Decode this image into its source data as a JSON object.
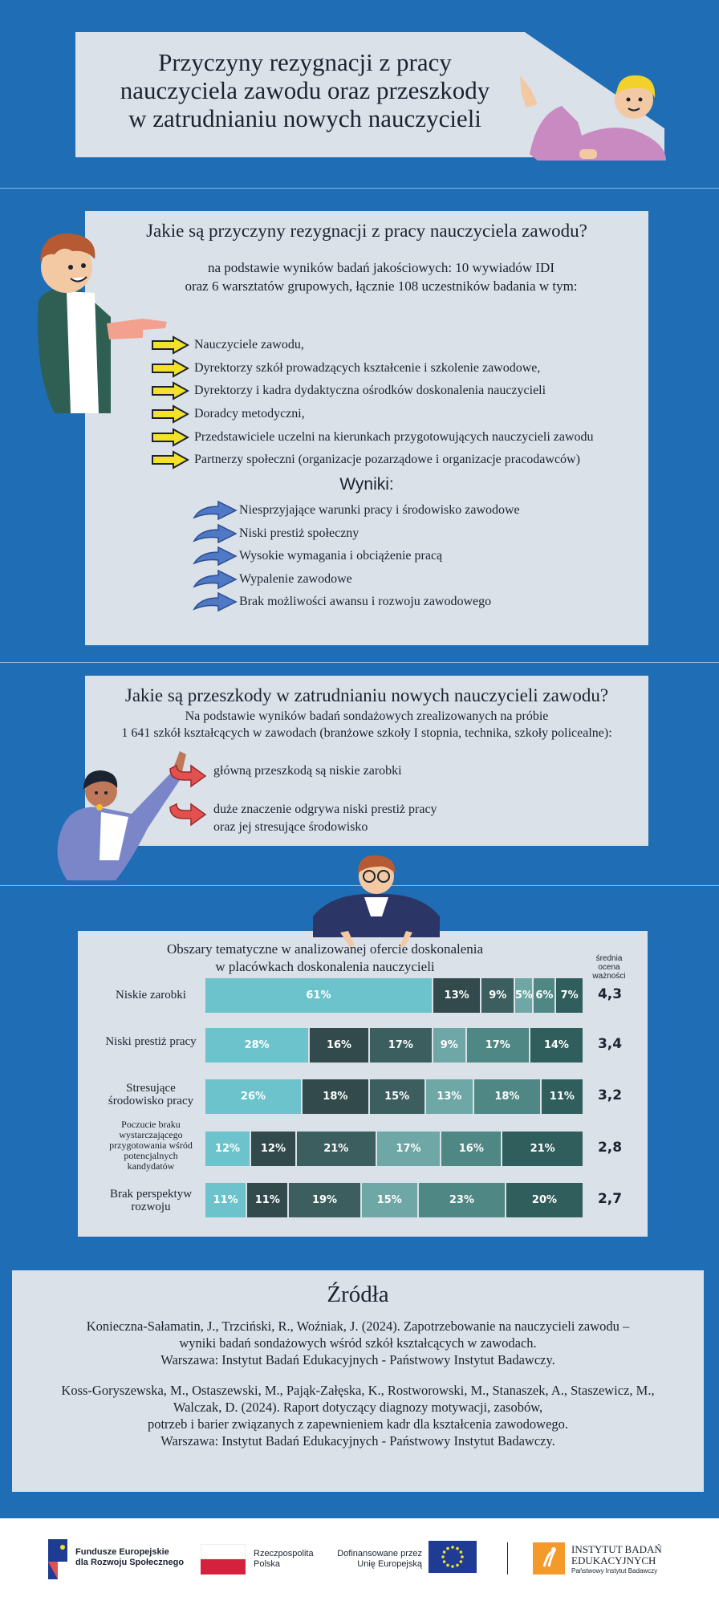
{
  "header": {
    "title_line1": "Przyczyny rezygnacji z pracy",
    "title_line2": "nauczyciela zawodu oraz przeszkody",
    "title_line3": "w zatrudnianiu nowych nauczycieli"
  },
  "section1": {
    "question": "Jakie są przyczyny rezygnacji z pracy nauczyciela zawodu?",
    "subtitle_line1": "na podstawie wyników badań jakościowych: 10 wywiadów IDI",
    "subtitle_line2": "oraz 6 warsztatów grupowych, łącznie 108 uczestników badania w tym:",
    "participants": [
      "Nauczyciele zawodu,",
      "Dyrektorzy szkół prowadzących kształcenie i szkolenie zawodowe,",
      "Dyrektorzy i kadra dydaktyczna ośrodków doskonalenia nauczycieli",
      "Doradcy metodyczni,",
      "Przedstawiciele uczelni na kierunkach przygotowujących nauczycieli zawodu",
      "Partnerzy społeczni (organizacje pozarządowe i organizacje pracodawców)"
    ],
    "results_title": "Wyniki:",
    "results": [
      "Niesprzyjające warunki pracy i środowisko zawodowe",
      "Niski prestiż społeczny",
      "Wysokie wymagania i obciążenie pracą",
      "Wypalenie zawodowe",
      "Brak możliwości awansu i rozwoju zawodowego"
    ]
  },
  "section2": {
    "question": "Jakie są przeszkody w zatrudnianiu nowych nauczycieli zawodu?",
    "subtitle_line1": "Na podstawie wyników badań sondażowych zrealizowanych na próbie",
    "subtitle_line2": "1 641 szkół kształcących w zawodach (branżowe szkoły I stopnia, technika, szkoły policealne):",
    "findings": [
      {
        "line1": "główną przeszkodą są niskie zarobki",
        "line2": ""
      },
      {
        "line1": "duże znaczenie odgrywa niski prestiż pracy",
        "line2": "oraz jej stresujące środowisko"
      }
    ]
  },
  "chart_data": {
    "type": "bar",
    "stacked": true,
    "orientation": "horizontal",
    "title_line1": "Obszary tematyczne w analizowanej ofercie doskonalenia",
    "title_line2": "w placówkach doskonalenia nauczycieli",
    "avg_header": [
      "średnia",
      "ocena",
      "ważności"
    ],
    "colors": [
      "#6cc3cc",
      "#334a4d",
      "#3c5e5f",
      "#6ea7a5",
      "#4f8784",
      "#2f5e5c"
    ],
    "rows": [
      {
        "label": [
          "Niskie zarobki"
        ],
        "small": false,
        "values": [
          61,
          13,
          9,
          5,
          6,
          7
        ],
        "colors": [
          "#6cc3cc",
          "#334a4d",
          "#3c5e5f",
          "#6ea7a5",
          "#4f8784",
          "#2f5e5c"
        ],
        "avg": "4,3"
      },
      {
        "label": [
          "Niski prestiż pracy"
        ],
        "small": false,
        "values": [
          28,
          16,
          17,
          9,
          17,
          14
        ],
        "colors": [
          "#6cc3cc",
          "#334a4d",
          "#3c5e5f",
          "#6ea7a5",
          "#4f8784",
          "#2f5e5c"
        ],
        "avg": "3,4"
      },
      {
        "label": [
          "Stresujące",
          "środowisko pracy"
        ],
        "small": false,
        "values": [
          26,
          18,
          15,
          13,
          18,
          11
        ],
        "colors": [
          "#6cc3cc",
          "#334a4d",
          "#3c5e5f",
          "#6ea7a5",
          "#4f8784",
          "#2f5e5c"
        ],
        "avg": "3,2"
      },
      {
        "label": [
          "Poczucie braku",
          "wystarczającego",
          "przygotowania wśród",
          "potencjalnych",
          "kandydatów"
        ],
        "small": true,
        "values": [
          12,
          12,
          21,
          17,
          16,
          21
        ],
        "colors": [
          "#6cc3cc",
          "#334a4d",
          "#3c5e5f",
          "#6ea7a5",
          "#4f8784",
          "#2f5e5c"
        ],
        "avg": "2,8"
      },
      {
        "label": [
          "Brak perspektyw",
          "rozwoju"
        ],
        "small": false,
        "values": [
          11,
          11,
          19,
          15,
          23,
          20
        ],
        "colors": [
          "#6cc3cc",
          "#334a4d",
          "#3c5e5f",
          "#6ea7a5",
          "#4f8784",
          "#2f5e5c"
        ],
        "avg": "2,7"
      }
    ]
  },
  "sources": {
    "title": "Źródła",
    "ref1_line1": "Konieczna-Sałamatin, J., Trzciński, R., Woźniak, J. (2024). Zapotrzebowanie na nauczycieli zawodu –",
    "ref1_line2": "wyniki badań sondażowych wśród szkół kształcących w zawodach.",
    "ref1_line3": "Warszawa: Instytut Badań Edukacyjnych - Państwowy Instytut Badawczy.",
    "ref2_line1": "Koss-Goryszewska, M., Ostaszewski, M., Pająk-Załęska, K., Rostworowski, M., Stanaszek, A., Staszewicz, M.,",
    "ref2_line2": "Walczak, D. (2024).  Raport dotyczący diagnozy motywacji, zasobów,",
    "ref2_line3": "potrzeb i barier związanych z zapewnieniem kadr dla kształcenia zawodowego.",
    "ref2_line4": "Warszawa: Instytut Badań Edukacyjnych - Państwowy Instytut Badawczy."
  },
  "footer": {
    "fe_line1": "Fundusze Europejskie",
    "fe_line2": "dla Rozwoju Społecznego",
    "rp_line1": "Rzeczpospolita",
    "rp_line2": "Polska",
    "eu_line1": "Dofinansowane przez",
    "eu_line2": "Unię Europejską",
    "ibe_line1": "INSTYTUT BADAŃ",
    "ibe_line2": "EDUKACYJNYCH",
    "ibe_line3": "Państwowy Instytut Badawczy"
  }
}
